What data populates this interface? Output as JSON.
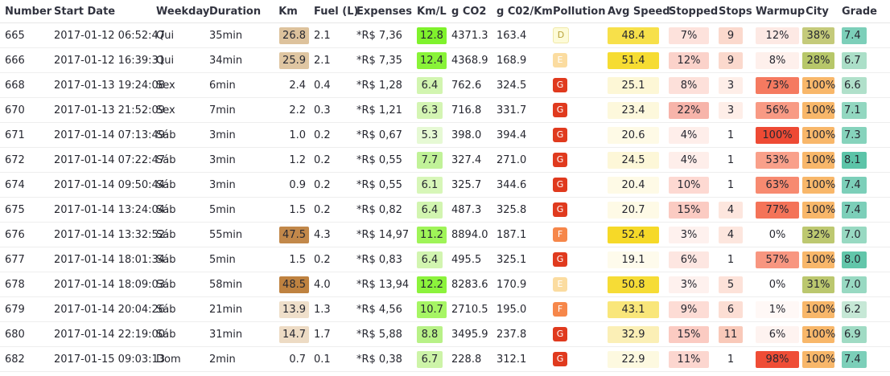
{
  "columns": [
    "Number",
    "Start Date",
    "Weekday",
    "Duration",
    "Km",
    "Fuel (L)",
    "Expenses",
    "Km/L",
    "g CO2",
    "g C02/Km",
    "Pollution",
    "Avg Speed",
    "Stopped",
    "Stops",
    "Warmup",
    "City",
    "Grade"
  ],
  "rows": [
    {
      "number": "665",
      "start": "2017-01-12 06:52:47",
      "weekday": "Qui",
      "duration": "35min",
      "km": "26.8",
      "fuel": "2.1",
      "expenses": "*R$ 7,36",
      "kml": "12.8",
      "co2": "4371.3",
      "co2km": "163.4",
      "pollution": "D",
      "speed": "48.4",
      "stopped": "7%",
      "stops": "9",
      "warmup": "12%",
      "city": "38%",
      "grade": "7.4",
      "colors": {
        "km": "#ddc29c",
        "kml": "#7ff22c",
        "pollution": "#fdfbd8",
        "speed": "#f7e04a",
        "stopped": "#fde2dc",
        "stops": "#fbd9cd",
        "warmup": "#fde9e4",
        "city": "#c4ca7a",
        "grade": "#7ccfb9"
      }
    },
    {
      "number": "666",
      "start": "2017-01-12 16:39:31",
      "weekday": "Qui",
      "duration": "34min",
      "km": "25.9",
      "fuel": "2.1",
      "expenses": "*R$ 7,35",
      "kml": "12.4",
      "co2": "4368.9",
      "co2km": "168.9",
      "pollution": "E",
      "speed": "51.4",
      "stopped": "12%",
      "stops": "9",
      "warmup": "8%",
      "city": "28%",
      "grade": "6.7",
      "colors": {
        "km": "#dfc6a2",
        "kml": "#89f338",
        "pollution": "#fbdca0",
        "speed": "#f6dc32",
        "stopped": "#fbd2ca",
        "stops": "#fbd9cd",
        "warmup": "#fef0ec",
        "city": "#b7c769",
        "grade": "#abdfc8"
      }
    },
    {
      "number": "668",
      "start": "2017-01-13 19:24:08",
      "weekday": "Sex",
      "duration": "6min",
      "km": "2.4",
      "fuel": "0.4",
      "expenses": "*R$ 1,28",
      "kml": "6.4",
      "co2": "762.6",
      "co2km": "324.5",
      "pollution": "G",
      "speed": "25.1",
      "stopped": "8%",
      "stops": "3",
      "warmup": "73%",
      "city": "100%",
      "grade": "6.6",
      "colors": {
        "km": "",
        "kml": "#d2f5b0",
        "pollution": "#e03a1e",
        "speed": "#fdf7d6",
        "stopped": "#fde0da",
        "stops": "#feeee8",
        "warmup": "#f57a60",
        "city": "#f8b76a",
        "grade": "#b0e0ca"
      }
    },
    {
      "number": "670",
      "start": "2017-01-13 21:52:09",
      "weekday": "Sex",
      "duration": "7min",
      "km": "2.2",
      "fuel": "0.3",
      "expenses": "*R$ 1,21",
      "kml": "6.3",
      "co2": "716.8",
      "co2km": "331.7",
      "pollution": "G",
      "speed": "23.4",
      "stopped": "22%",
      "stops": "3",
      "warmup": "56%",
      "city": "100%",
      "grade": "7.1",
      "colors": {
        "km": "",
        "kml": "#d4f5b3",
        "pollution": "#e03a1e",
        "speed": "#fdf8dc",
        "stopped": "#f7b4aa",
        "stops": "#feeee8",
        "warmup": "#f89a84",
        "city": "#f8b76a",
        "grade": "#92d7c0"
      }
    },
    {
      "number": "671",
      "start": "2017-01-14 07:13:49",
      "weekday": "Sáb",
      "duration": "3min",
      "km": "1.0",
      "fuel": "0.2",
      "expenses": "*R$ 0,67",
      "kml": "5.3",
      "co2": "398.0",
      "co2km": "394.4",
      "pollution": "G",
      "speed": "20.6",
      "stopped": "4%",
      "stops": "1",
      "warmup": "100%",
      "city": "100%",
      "grade": "7.3",
      "colors": {
        "km": "",
        "kml": "#e6f9d4",
        "pollution": "#e03a1e",
        "speed": "#fefae6",
        "stopped": "#feeeea",
        "stops": "",
        "warmup": "#ee4a34",
        "city": "#f8b76a",
        "grade": "#86d3bc"
      }
    },
    {
      "number": "672",
      "start": "2017-01-14 07:22:47",
      "weekday": "Sáb",
      "duration": "3min",
      "km": "1.2",
      "fuel": "0.2",
      "expenses": "*R$ 0,55",
      "kml": "7.7",
      "co2": "327.4",
      "co2km": "271.0",
      "pollution": "G",
      "speed": "24.5",
      "stopped": "4%",
      "stops": "1",
      "warmup": "53%",
      "city": "100%",
      "grade": "8.1",
      "colors": {
        "km": "",
        "kml": "#c1f298",
        "pollution": "#e03a1e",
        "speed": "#fdf7d8",
        "stopped": "#feeeea",
        "stops": "",
        "warmup": "#f9a08a",
        "city": "#f8b76a",
        "grade": "#5cc4a8"
      }
    },
    {
      "number": "674",
      "start": "2017-01-14 09:50:44",
      "weekday": "Sáb",
      "duration": "3min",
      "km": "0.9",
      "fuel": "0.2",
      "expenses": "*R$ 0,55",
      "kml": "6.1",
      "co2": "325.7",
      "co2km": "344.6",
      "pollution": "G",
      "speed": "20.4",
      "stopped": "10%",
      "stops": "1",
      "warmup": "63%",
      "city": "100%",
      "grade": "7.4",
      "colors": {
        "km": "",
        "kml": "#d7f6b8",
        "pollution": "#e03a1e",
        "speed": "#fefae6",
        "stopped": "#fdd9d2",
        "stops": "",
        "warmup": "#f78a70",
        "city": "#f8b76a",
        "grade": "#7ccfb9"
      }
    },
    {
      "number": "675",
      "start": "2017-01-14 13:24:04",
      "weekday": "Sáb",
      "duration": "5min",
      "km": "1.5",
      "fuel": "0.2",
      "expenses": "*R$ 0,82",
      "kml": "6.4",
      "co2": "487.3",
      "co2km": "325.8",
      "pollution": "G",
      "speed": "20.7",
      "stopped": "15%",
      "stops": "4",
      "warmup": "77%",
      "city": "100%",
      "grade": "7.4",
      "colors": {
        "km": "",
        "kml": "#d2f5b0",
        "pollution": "#e03a1e",
        "speed": "#fefae6",
        "stopped": "#fbcbc2",
        "stops": "#fde6de",
        "warmup": "#f47358",
        "city": "#f8b76a",
        "grade": "#7ccfb9"
      }
    },
    {
      "number": "676",
      "start": "2017-01-14 13:32:52",
      "weekday": "Sáb",
      "duration": "55min",
      "km": "47.5",
      "fuel": "4.3",
      "expenses": "*R$ 14,97",
      "kml": "11.2",
      "co2": "8894.0",
      "co2km": "187.1",
      "pollution": "F",
      "speed": "52.4",
      "stopped": "3%",
      "stops": "4",
      "warmup": "0%",
      "city": "32%",
      "grade": "7.0",
      "colors": {
        "km": "#c2884a",
        "kml": "#9ff458",
        "pollution": "#f6874a",
        "speed": "#f6d928",
        "stopped": "#fef1ee",
        "stops": "#fde6de",
        "warmup": "",
        "city": "#bdc870",
        "grade": "#98d9c2"
      }
    },
    {
      "number": "677",
      "start": "2017-01-14 18:01:34",
      "weekday": "Sáb",
      "duration": "5min",
      "km": "1.5",
      "fuel": "0.2",
      "expenses": "*R$ 0,83",
      "kml": "6.4",
      "co2": "495.5",
      "co2km": "325.1",
      "pollution": "G",
      "speed": "19.1",
      "stopped": "6%",
      "stops": "1",
      "warmup": "57%",
      "city": "100%",
      "grade": "8.0",
      "colors": {
        "km": "",
        "kml": "#d2f5b0",
        "pollution": "#e03a1e",
        "speed": "#fefbec",
        "stopped": "#fde6e1",
        "stops": "",
        "warmup": "#f89680",
        "city": "#f8b76a",
        "grade": "#62c6aa"
      }
    },
    {
      "number": "678",
      "start": "2017-01-14 18:09:03",
      "weekday": "Sáb",
      "duration": "58min",
      "km": "48.5",
      "fuel": "4.0",
      "expenses": "*R$ 13,94",
      "kml": "12.2",
      "co2": "8283.6",
      "co2km": "170.9",
      "pollution": "E",
      "speed": "50.8",
      "stopped": "3%",
      "stops": "5",
      "warmup": "0%",
      "city": "31%",
      "grade": "7.0",
      "colors": {
        "km": "#bf8240",
        "kml": "#8cf33c",
        "pollution": "#fbdca0",
        "speed": "#f6dc36",
        "stopped": "#fef1ee",
        "stops": "#fde2d9",
        "warmup": "",
        "city": "#bbc76e",
        "grade": "#98d9c2"
      }
    },
    {
      "number": "679",
      "start": "2017-01-14 20:04:26",
      "weekday": "Sáb",
      "duration": "21min",
      "km": "13.9",
      "fuel": "1.3",
      "expenses": "*R$ 4,56",
      "kml": "10.7",
      "co2": "2710.5",
      "co2km": "195.0",
      "pollution": "F",
      "speed": "43.1",
      "stopped": "9%",
      "stops": "6",
      "warmup": "1%",
      "city": "100%",
      "grade": "6.2",
      "colors": {
        "km": "#efdfca",
        "kml": "#a6f564",
        "pollution": "#f6874a",
        "speed": "#f9e67a",
        "stopped": "#fddcd5",
        "stops": "#fcded4",
        "warmup": "#fff8f6",
        "city": "#f8b76a",
        "grade": "#c6e8d6"
      }
    },
    {
      "number": "680",
      "start": "2017-01-14 22:19:00",
      "weekday": "Sáb",
      "duration": "31min",
      "km": "14.7",
      "fuel": "1.7",
      "expenses": "*R$ 5,88",
      "kml": "8.8",
      "co2": "3495.9",
      "co2km": "237.8",
      "pollution": "G",
      "speed": "32.9",
      "stopped": "15%",
      "stops": "11",
      "warmup": "6%",
      "city": "100%",
      "grade": "6.9",
      "colors": {
        "km": "#eddbc4",
        "kml": "#b8f187",
        "pollution": "#e03a1e",
        "speed": "#fbefb6",
        "stopped": "#fbcbc2",
        "stops": "#f9c9b9",
        "warmup": "#fef3f0",
        "city": "#f8b76a",
        "grade": "#a0dbc4"
      }
    },
    {
      "number": "682",
      "start": "2017-01-15 09:03:13",
      "weekday": "Dom",
      "duration": "2min",
      "km": "0.7",
      "fuel": "0.1",
      "expenses": "*R$ 0,38",
      "kml": "6.7",
      "co2": "228.8",
      "co2km": "312.1",
      "pollution": "G",
      "speed": "22.9",
      "stopped": "11%",
      "stops": "1",
      "warmup": "98%",
      "city": "100%",
      "grade": "7.4",
      "colors": {
        "km": "",
        "kml": "#cdf4a8",
        "pollution": "#e03a1e",
        "speed": "#fdf9e0",
        "stopped": "#fcd6cf",
        "stops": "",
        "warmup": "#ef4d36",
        "city": "#f8b76a",
        "grade": "#7ccfb9"
      }
    }
  ]
}
